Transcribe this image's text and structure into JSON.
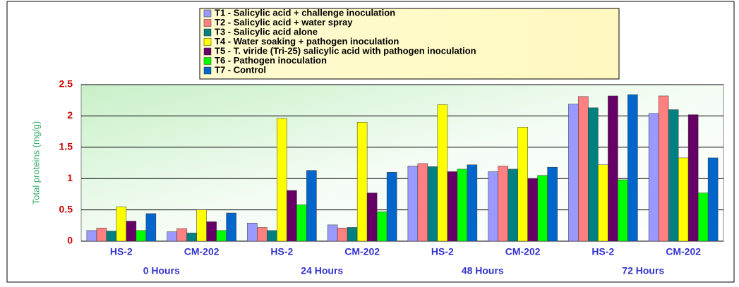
{
  "chart_data": {
    "type": "bar",
    "y_label": "Total proteins (mg/g)",
    "categories": [
      "HS-2",
      "CM-202",
      "HS-2",
      "CM-202",
      "HS-2",
      "CM-202",
      "HS-2",
      "CM-202"
    ],
    "groups": [
      "0 Hours",
      "24 Hours",
      "48 Hours",
      "72 Hours"
    ],
    "series": [
      {
        "name": "T1 - Salicylic acid + challenge inoculation",
        "color": "#9999ff",
        "values": [
          0.17,
          0.15,
          0.29,
          0.26,
          1.2,
          1.11,
          2.19,
          2.04
        ]
      },
      {
        "name": "T2 - Salicylic acid + water spray",
        "color": "#ff8080",
        "values": [
          0.21,
          0.2,
          0.22,
          0.21,
          1.24,
          1.2,
          2.31,
          2.32
        ]
      },
      {
        "name": "T3 - Salicylic acid alone",
        "color": "#008080",
        "values": [
          0.16,
          0.13,
          0.17,
          0.22,
          1.19,
          1.15,
          2.13,
          2.1
        ]
      },
      {
        "name": "T4 - Water soaking + pathogen inoculation",
        "color": "#ffff00",
        "values": [
          0.55,
          0.5,
          1.96,
          1.9,
          2.18,
          1.82,
          1.22,
          1.33
        ]
      },
      {
        "name": "T5 - T. viride (Tri-25) salicylic acid with pathogen inoculation",
        "color": "#660066",
        "values": [
          0.32,
          0.31,
          0.81,
          0.77,
          1.11,
          1.0,
          2.32,
          2.02
        ]
      },
      {
        "name": "T6 - Pathogen inoculation",
        "color": "#00ff00",
        "values": [
          0.17,
          0.17,
          0.58,
          0.47,
          1.15,
          1.05,
          0.98,
          0.77
        ]
      },
      {
        "name": "T7 - Control",
        "color": "#0066cc",
        "values": [
          0.44,
          0.45,
          1.13,
          1.1,
          1.22,
          1.18,
          2.34,
          1.33
        ]
      }
    ],
    "ylim": [
      0,
      2.5
    ],
    "yticks": [
      0,
      0.5,
      1,
      1.5,
      2,
      2.5
    ],
    "grid": true
  }
}
